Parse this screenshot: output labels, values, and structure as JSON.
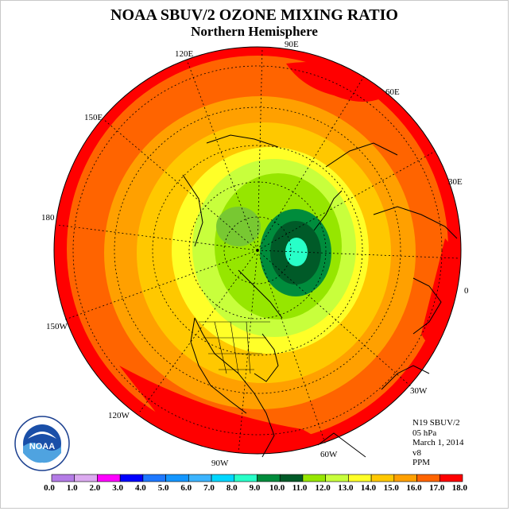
{
  "title": "NOAA SBUV/2 OZONE MIXING RATIO",
  "subtitle": "Northern Hemisphere",
  "longitude_labels": {
    "lon_90e": "90E",
    "lon_60e": "60E",
    "lon_30e": "30E",
    "lon_0": "0",
    "lon_30w": "30W",
    "lon_60w": "60W",
    "lon_90w": "90W",
    "lon_120w": "120W",
    "lon_150w": "150W",
    "lon_180": "180",
    "lon_150e": "150E",
    "lon_120e": "120E"
  },
  "info": {
    "satellite": "N19 SBUV/2",
    "level": "05 hPa",
    "date": "March 1, 2014",
    "version": "v8",
    "units": "PPM"
  },
  "logo": {
    "text": "NOAA",
    "ring_text": "NATIONAL OCEANIC AND ATMOSPHERIC ADMINISTRATION · U.S. DEPARTMENT OF COMMERCE"
  },
  "colorbar": {
    "ticks": [
      "0.0",
      "1.0",
      "2.0",
      "3.0",
      "4.0",
      "5.0",
      "6.0",
      "7.0",
      "8.0",
      "9.0",
      "10.0",
      "11.0",
      "12.0",
      "13.0",
      "14.0",
      "15.0",
      "16.0",
      "17.0",
      "18.0"
    ],
    "colors": [
      "#b47ce6",
      "#dcaaf0",
      "#ff00ff",
      "#0000ff",
      "#1e78ff",
      "#1496ff",
      "#3cb4ff",
      "#00d7ff",
      "#28ffc8",
      "#008c3c",
      "#005a28",
      "#96e600",
      "#c8ff3c",
      "#ffff28",
      "#ffc800",
      "#ffa000",
      "#ff6400",
      "#ff0000",
      "#a06040"
    ]
  }
}
